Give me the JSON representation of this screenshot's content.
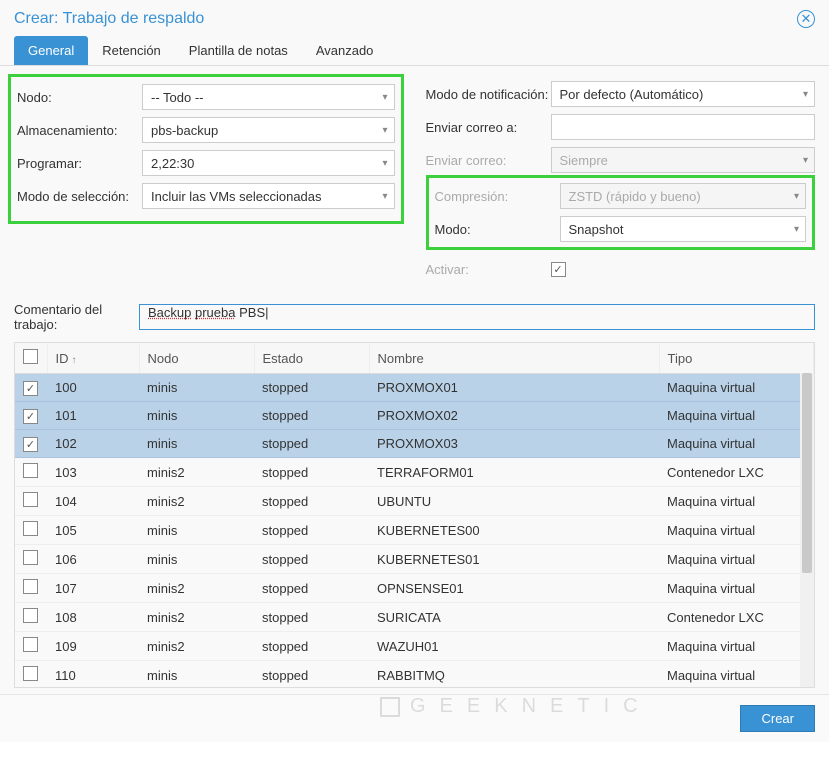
{
  "dialog": {
    "title": "Crear: Trabajo de respaldo"
  },
  "tabs": {
    "general": "General",
    "retencion": "Retención",
    "plantilla": "Plantilla de notas",
    "avanzado": "Avanzado"
  },
  "left": {
    "nodo_label": "Nodo:",
    "nodo_value": "-- Todo --",
    "almac_label": "Almacenamiento:",
    "almac_value": "pbs-backup",
    "prog_label": "Programar:",
    "prog_value": "2,22:30",
    "modo_sel_label": "Modo de selección:",
    "modo_sel_value": "Incluir las VMs seleccionadas"
  },
  "right": {
    "notif_label": "Modo de notificación:",
    "notif_value": "Por defecto (Automático)",
    "enviar_a_label": "Enviar correo a:",
    "enviar_a_value": "",
    "enviar_label": "Enviar correo:",
    "enviar_value": "Siempre",
    "comp_label": "Compresión:",
    "comp_value": "ZSTD (rápido y bueno)",
    "modo_label": "Modo:",
    "modo_value": "Snapshot",
    "activar_label": "Activar:"
  },
  "comment": {
    "label": "Comentario del trabajo:",
    "value_a": "Backup",
    "value_b": "prueba",
    "value_c": "PBS"
  },
  "table": {
    "headers": {
      "id": "ID",
      "nodo": "Nodo",
      "estado": "Estado",
      "nombre": "Nombre",
      "tipo": "Tipo"
    },
    "rows": [
      {
        "chk": true,
        "id": "100",
        "nodo": "minis",
        "estado": "stopped",
        "nombre": "PROXMOX01",
        "tipo": "Maquina virtual",
        "sel": true
      },
      {
        "chk": true,
        "id": "101",
        "nodo": "minis",
        "estado": "stopped",
        "nombre": "PROXMOX02",
        "tipo": "Maquina virtual",
        "sel": true
      },
      {
        "chk": true,
        "id": "102",
        "nodo": "minis",
        "estado": "stopped",
        "nombre": "PROXMOX03",
        "tipo": "Maquina virtual",
        "sel": true
      },
      {
        "chk": false,
        "id": "103",
        "nodo": "minis2",
        "estado": "stopped",
        "nombre": "TERRAFORM01",
        "tipo": "Contenedor LXC",
        "sel": false
      },
      {
        "chk": false,
        "id": "104",
        "nodo": "minis2",
        "estado": "stopped",
        "nombre": "UBUNTU",
        "tipo": "Maquina virtual",
        "sel": false
      },
      {
        "chk": false,
        "id": "105",
        "nodo": "minis",
        "estado": "stopped",
        "nombre": "KUBERNETES00",
        "tipo": "Maquina virtual",
        "sel": false
      },
      {
        "chk": false,
        "id": "106",
        "nodo": "minis",
        "estado": "stopped",
        "nombre": "KUBERNETES01",
        "tipo": "Maquina virtual",
        "sel": false
      },
      {
        "chk": false,
        "id": "107",
        "nodo": "minis2",
        "estado": "stopped",
        "nombre": "OPNSENSE01",
        "tipo": "Maquina virtual",
        "sel": false
      },
      {
        "chk": false,
        "id": "108",
        "nodo": "minis2",
        "estado": "stopped",
        "nombre": "SURICATA",
        "tipo": "Contenedor LXC",
        "sel": false
      },
      {
        "chk": false,
        "id": "109",
        "nodo": "minis2",
        "estado": "stopped",
        "nombre": "WAZUH01",
        "tipo": "Maquina virtual",
        "sel": false
      },
      {
        "chk": false,
        "id": "110",
        "nodo": "minis",
        "estado": "stopped",
        "nombre": "RABBITMQ",
        "tipo": "Maquina virtual",
        "sel": false
      }
    ]
  },
  "footer": {
    "crear": "Crear"
  },
  "watermark": "GEEKNETIC",
  "colors": {
    "accent": "#3892d4",
    "highlight": "#3cd03c",
    "row_selected": "#b9d2e8"
  }
}
